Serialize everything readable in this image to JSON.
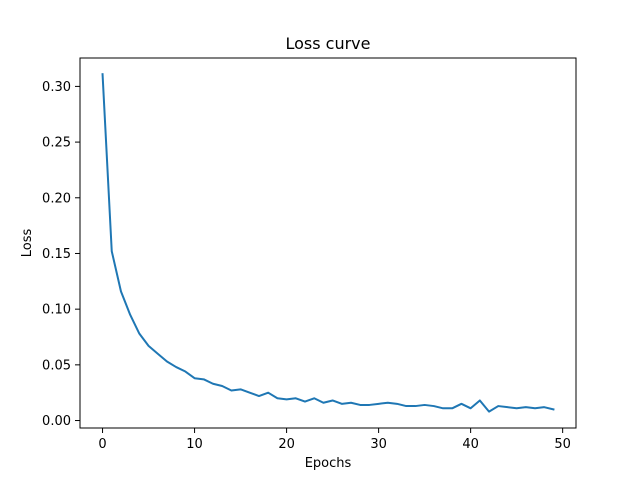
{
  "chart_data": {
    "type": "line",
    "title": "Loss curve",
    "xlabel": "Epochs",
    "ylabel": "Loss",
    "xlim": [
      -2.45,
      51.45
    ],
    "ylim": [
      -0.0067,
      0.3255
    ],
    "x_ticks": [
      0,
      10,
      20,
      30,
      40,
      50
    ],
    "x_tick_labels": [
      "0",
      "10",
      "20",
      "30",
      "40",
      "50"
    ],
    "y_ticks": [
      0.0,
      0.05,
      0.1,
      0.15,
      0.2,
      0.25,
      0.3
    ],
    "y_tick_labels": [
      "0.00",
      "0.05",
      "0.10",
      "0.15",
      "0.20",
      "0.25",
      "0.30"
    ],
    "grid": false,
    "series": [
      {
        "color": "#1f77b4",
        "x": [
          0,
          1,
          2,
          3,
          4,
          5,
          6,
          7,
          8,
          9,
          10,
          11,
          12,
          13,
          14,
          15,
          16,
          17,
          18,
          19,
          20,
          21,
          22,
          23,
          24,
          25,
          26,
          27,
          28,
          29,
          30,
          31,
          32,
          33,
          34,
          35,
          36,
          37,
          38,
          39,
          40,
          41,
          42,
          43,
          44,
          45,
          46,
          47,
          48,
          49
        ],
        "values": [
          0.311,
          0.152,
          0.116,
          0.095,
          0.078,
          0.067,
          0.06,
          0.053,
          0.048,
          0.044,
          0.038,
          0.037,
          0.033,
          0.031,
          0.027,
          0.028,
          0.025,
          0.022,
          0.025,
          0.02,
          0.019,
          0.02,
          0.017,
          0.02,
          0.016,
          0.018,
          0.015,
          0.016,
          0.014,
          0.014,
          0.015,
          0.016,
          0.015,
          0.013,
          0.013,
          0.014,
          0.013,
          0.011,
          0.011,
          0.015,
          0.011,
          0.018,
          0.008,
          0.013,
          0.012,
          0.011,
          0.012,
          0.011,
          0.012,
          0.01
        ]
      }
    ]
  }
}
